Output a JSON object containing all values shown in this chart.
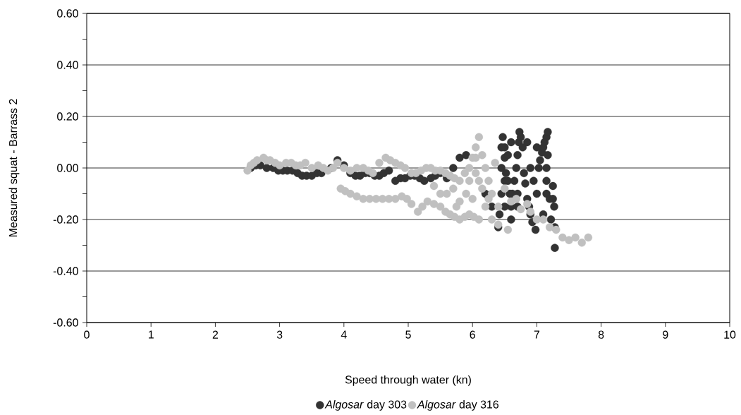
{
  "chart_data": {
    "type": "scatter",
    "xlabel": "Speed through water (kn)",
    "ylabel": "Measured squat - Barrass 2",
    "xlim": [
      0,
      10
    ],
    "xticks": [
      0,
      1,
      2,
      3,
      4,
      5,
      6,
      7,
      8,
      9,
      10
    ],
    "ylim": [
      -0.6,
      0.6
    ],
    "yticks": [
      {
        "value": -0.6,
        "label": "-0.60"
      },
      {
        "value": -0.5,
        "label": null
      },
      {
        "value": -0.4,
        "label": "-0.40"
      },
      {
        "value": -0.3,
        "label": null
      },
      {
        "value": -0.2,
        "label": "-0.20"
      },
      {
        "value": -0.1,
        "label": null
      },
      {
        "value": 0,
        "label": "0.00"
      },
      {
        "value": 0.1,
        "label": null
      },
      {
        "value": 0.2,
        "label": "0.20"
      },
      {
        "value": 0.3,
        "label": null
      },
      {
        "value": 0.4,
        "label": "0.40"
      },
      {
        "value": 0.5,
        "label": null
      },
      {
        "value": 0.6,
        "label": "0.60"
      }
    ],
    "grid": "y",
    "legend": "bottom",
    "series": [
      {
        "name": "*Algosar* day 303",
        "color": "#333333",
        "x": [
          2.55,
          2.63,
          2.7,
          2.8,
          2.9,
          2.98,
          3.05,
          3.12,
          3.2,
          3.28,
          3.35,
          3.42,
          3.5,
          3.58,
          3.65,
          3.8,
          3.9,
          4.0,
          4.1,
          4.18,
          4.25,
          4.33,
          4.4,
          4.48,
          4.55,
          4.62,
          4.7,
          4.8,
          4.88,
          4.95,
          5.03,
          5.1,
          5.18,
          5.25,
          5.35,
          5.42,
          5.5,
          5.6,
          5.7,
          5.8,
          5.9,
          6.0,
          6.1,
          6.2,
          6.3,
          6.4,
          6.42,
          6.45,
          6.45,
          6.47,
          6.5,
          6.5,
          6.52,
          6.55,
          6.58,
          6.6,
          6.62,
          6.65,
          6.68,
          6.7,
          6.72,
          6.73,
          6.75,
          6.78,
          6.8,
          6.82,
          6.85,
          6.88,
          6.9,
          6.93,
          6.98,
          7.0,
          7.03,
          7.05,
          7.08,
          7.1,
          7.12,
          7.15,
          7.17,
          7.17,
          7.15,
          7.2,
          7.22,
          7.25,
          7.27,
          7.28,
          7.28,
          7.0,
          6.85,
          6.6,
          6.6,
          6.9,
          7.1,
          6.5,
          6.5,
          6.7,
          6.7,
          7.15,
          7.15,
          7.25,
          6.95,
          6.55,
          6.45
        ],
        "values": [
          0.0,
          0.01,
          0.01,
          0.0,
          0.0,
          -0.01,
          -0.01,
          -0.01,
          -0.01,
          -0.02,
          -0.03,
          -0.03,
          -0.03,
          -0.02,
          -0.02,
          0.0,
          0.03,
          0.01,
          -0.02,
          -0.03,
          -0.03,
          -0.02,
          -0.02,
          -0.03,
          -0.03,
          -0.02,
          -0.01,
          -0.05,
          -0.04,
          -0.04,
          -0.03,
          -0.03,
          -0.04,
          -0.05,
          -0.04,
          -0.03,
          -0.02,
          -0.04,
          0.0,
          0.04,
          0.05,
          null,
          null,
          -0.1,
          -0.15,
          -0.23,
          -0.18,
          -0.1,
          0.0,
          0.12,
          0.08,
          0.04,
          -0.02,
          -0.05,
          -0.1,
          -0.15,
          -0.1,
          -0.05,
          0.0,
          0.05,
          0.1,
          0.14,
          0.12,
          0.08,
          -0.02,
          -0.06,
          -0.12,
          -0.15,
          -0.18,
          -0.21,
          -0.24,
          -0.1,
          0.0,
          0.03,
          0.06,
          0.08,
          0.1,
          0.12,
          0.14,
          0.05,
          -0.05,
          -0.12,
          -0.2,
          -0.07,
          -0.15,
          -0.23,
          -0.31,
          0.08,
          0.1,
          0.1,
          -0.2,
          0.0,
          -0.18,
          -0.15,
          -0.05,
          -0.1,
          -0.15,
          -0.1,
          0.0,
          -0.12,
          -0.05,
          0.05,
          0.08
        ]
      },
      {
        "name": "*Algosar* day 316",
        "color": "#c0c0c0",
        "x": [
          2.5,
          2.55,
          2.6,
          2.65,
          2.75,
          2.8,
          2.85,
          2.93,
          3.0,
          3.1,
          3.18,
          3.25,
          3.32,
          3.4,
          3.5,
          3.6,
          3.68,
          3.75,
          3.83,
          3.9,
          4.0,
          4.1,
          4.2,
          4.3,
          4.38,
          4.45,
          4.55,
          4.65,
          4.72,
          4.8,
          4.88,
          4.95,
          5.05,
          5.12,
          5.2,
          5.28,
          5.35,
          5.42,
          5.5,
          5.58,
          5.65,
          5.72,
          5.8,
          5.88,
          5.95,
          6.0,
          6.05,
          6.1,
          6.15,
          6.05,
          3.95,
          4.02,
          4.1,
          4.2,
          4.3,
          4.4,
          4.5,
          4.6,
          4.7,
          4.8,
          4.9,
          4.98,
          5.05,
          5.15,
          5.22,
          5.3,
          5.4,
          5.5,
          5.58,
          5.65,
          5.72,
          5.8,
          5.88,
          5.95,
          6.02,
          6.1,
          6.2,
          6.3,
          6.35,
          6.25,
          5.9,
          5.7,
          5.4,
          6.0,
          6.15,
          6.3,
          6.4,
          5.6,
          5.8,
          6.1,
          6.2,
          5.5,
          5.75,
          6.05,
          6.25,
          5.95,
          6.5,
          6.6,
          6.75,
          6.9,
          7.0,
          7.1,
          7.2,
          7.3,
          7.4,
          7.5,
          7.6,
          7.7,
          7.8,
          6.4,
          6.55,
          6.85,
          6.68
        ],
        "values": [
          -0.01,
          0.01,
          0.02,
          0.03,
          0.04,
          0.03,
          0.03,
          0.02,
          0.01,
          0.02,
          0.02,
          0.01,
          0.01,
          0.02,
          0.0,
          0.01,
          0.0,
          -0.01,
          0.0,
          0.02,
          0.0,
          -0.01,
          0.0,
          0.0,
          -0.01,
          -0.02,
          0.02,
          0.04,
          0.03,
          0.02,
          0.01,
          0.0,
          -0.02,
          -0.02,
          -0.01,
          0.0,
          0.0,
          -0.01,
          -0.01,
          -0.02,
          -0.03,
          -0.04,
          -0.05,
          -0.02,
          0.0,
          0.04,
          0.08,
          0.12,
          0.05,
          -0.02,
          -0.08,
          -0.09,
          -0.1,
          -0.11,
          -0.12,
          -0.12,
          -0.12,
          -0.12,
          -0.12,
          -0.12,
          -0.11,
          -0.12,
          -0.14,
          -0.17,
          -0.15,
          -0.13,
          -0.14,
          -0.15,
          -0.17,
          -0.18,
          -0.19,
          -0.2,
          -0.19,
          -0.18,
          -0.19,
          -0.2,
          -0.15,
          -0.1,
          0.02,
          -0.05,
          -0.1,
          -0.08,
          -0.07,
          -0.12,
          -0.08,
          -0.2,
          -0.15,
          -0.1,
          -0.13,
          -0.05,
          0.0,
          -0.1,
          -0.15,
          0.04,
          -0.12,
          -0.05,
          -0.08,
          -0.13,
          -0.16,
          -0.17,
          -0.2,
          -0.2,
          -0.23,
          -0.24,
          -0.27,
          -0.28,
          -0.27,
          -0.29,
          -0.27,
          -0.22,
          -0.24,
          -0.14,
          -0.12
        ]
      }
    ]
  }
}
